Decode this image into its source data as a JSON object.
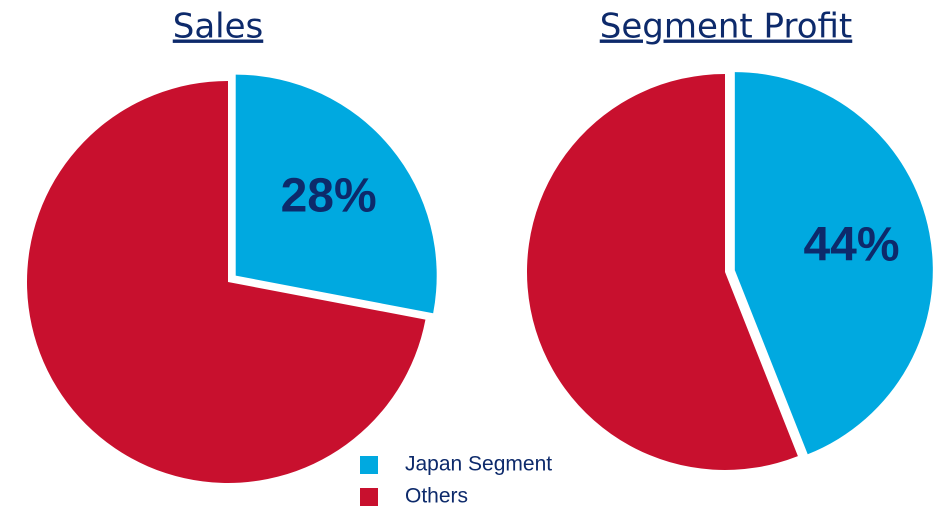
{
  "chart_data": [
    {
      "type": "pie",
      "title": "Sales",
      "categories": [
        "Japan Segment",
        "Others"
      ],
      "values": [
        28,
        72
      ],
      "value_labels": [
        "28%",
        null
      ],
      "colors": [
        "#00a9e0",
        "#c8102e"
      ],
      "explode": [
        true,
        false
      ]
    },
    {
      "type": "pie",
      "title": "Segment Profit",
      "categories": [
        "Japan Segment",
        "Others"
      ],
      "values": [
        44,
        56
      ],
      "value_labels": [
        "44%",
        null
      ],
      "colors": [
        "#00a9e0",
        "#c8102e"
      ],
      "explode": [
        true,
        false
      ]
    }
  ]
}
